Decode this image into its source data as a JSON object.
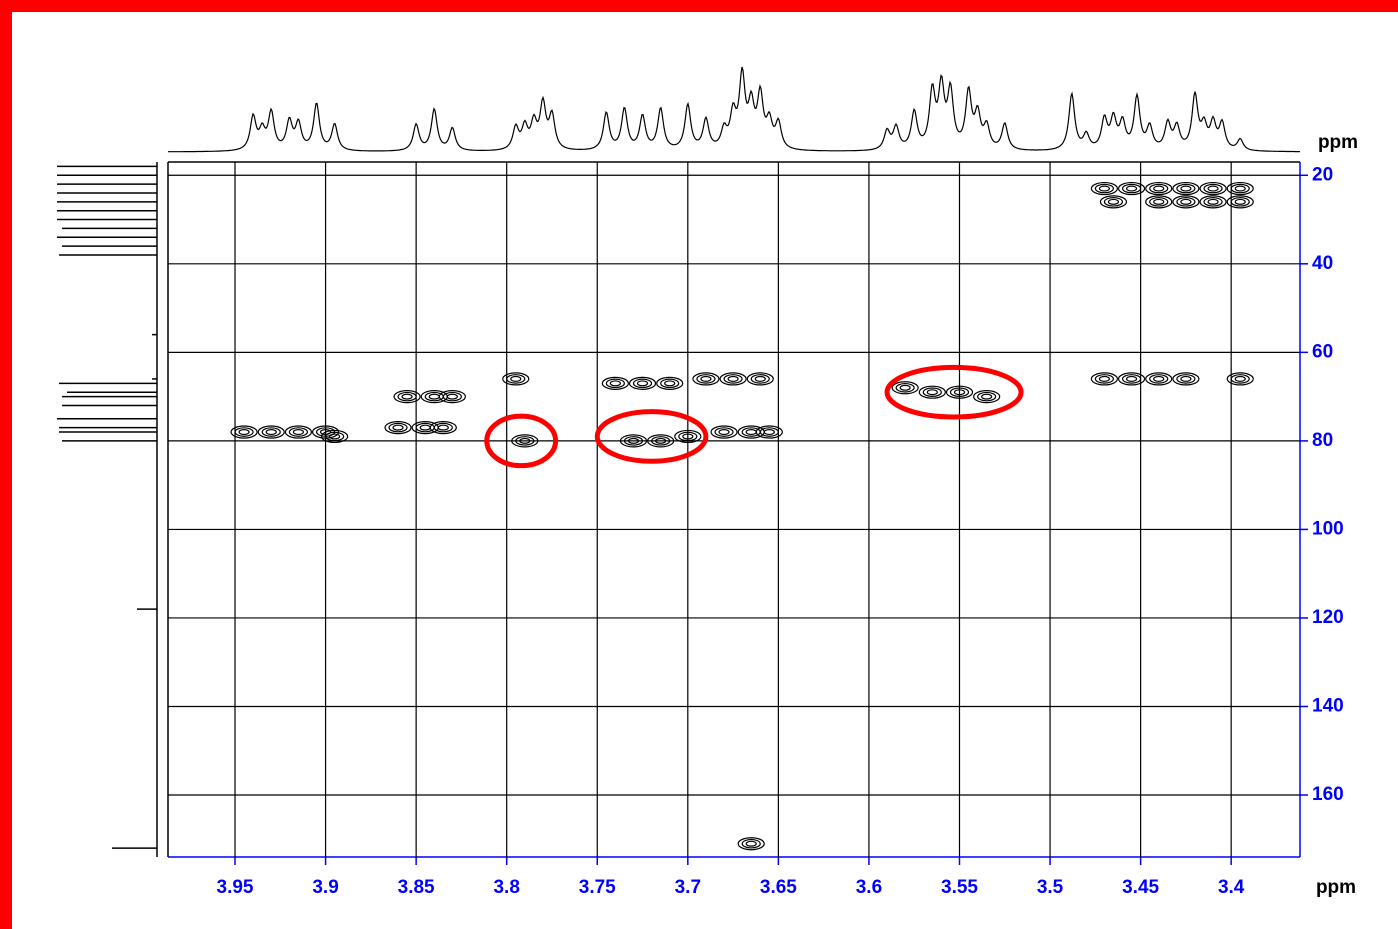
{
  "chart_data": {
    "type": "contour",
    "x_label": "ppm",
    "y_label": "ppm",
    "xlim": [
      3.987,
      3.362
    ],
    "ylim": [
      17,
      174
    ],
    "xticks": [
      3.95,
      3.9,
      3.85,
      3.8,
      3.75,
      3.7,
      3.65,
      3.6,
      3.55,
      3.5,
      3.45,
      3.4
    ],
    "yticks": [
      20,
      40,
      60,
      80,
      100,
      120,
      140,
      160
    ],
    "grid": true,
    "axis_color": "#0000ff",
    "peak_color": "#000000",
    "highlight_color": "#ff0000",
    "peaks": [
      {
        "x": 3.945,
        "y": 78
      },
      {
        "x": 3.93,
        "y": 78
      },
      {
        "x": 3.915,
        "y": 78
      },
      {
        "x": 3.9,
        "y": 78
      },
      {
        "x": 3.895,
        "y": 79
      },
      {
        "x": 3.855,
        "y": 70
      },
      {
        "x": 3.84,
        "y": 70
      },
      {
        "x": 3.83,
        "y": 70
      },
      {
        "x": 3.86,
        "y": 77
      },
      {
        "x": 3.845,
        "y": 77
      },
      {
        "x": 3.835,
        "y": 77
      },
      {
        "x": 3.795,
        "y": 66
      },
      {
        "x": 3.79,
        "y": 80
      },
      {
        "x": 3.74,
        "y": 67
      },
      {
        "x": 3.725,
        "y": 67
      },
      {
        "x": 3.71,
        "y": 67
      },
      {
        "x": 3.69,
        "y": 66
      },
      {
        "x": 3.675,
        "y": 66
      },
      {
        "x": 3.66,
        "y": 66
      },
      {
        "x": 3.73,
        "y": 80
      },
      {
        "x": 3.715,
        "y": 80
      },
      {
        "x": 3.7,
        "y": 79
      },
      {
        "x": 3.68,
        "y": 78
      },
      {
        "x": 3.665,
        "y": 78
      },
      {
        "x": 3.655,
        "y": 78
      },
      {
        "x": 3.58,
        "y": 68
      },
      {
        "x": 3.565,
        "y": 69
      },
      {
        "x": 3.55,
        "y": 69
      },
      {
        "x": 3.535,
        "y": 70
      },
      {
        "x": 3.47,
        "y": 66
      },
      {
        "x": 3.455,
        "y": 66
      },
      {
        "x": 3.44,
        "y": 66
      },
      {
        "x": 3.425,
        "y": 66
      },
      {
        "x": 3.395,
        "y": 66
      },
      {
        "x": 3.47,
        "y": 23
      },
      {
        "x": 3.455,
        "y": 23
      },
      {
        "x": 3.44,
        "y": 23
      },
      {
        "x": 3.425,
        "y": 23
      },
      {
        "x": 3.41,
        "y": 23
      },
      {
        "x": 3.395,
        "y": 23
      },
      {
        "x": 3.465,
        "y": 26
      },
      {
        "x": 3.44,
        "y": 26
      },
      {
        "x": 3.425,
        "y": 26
      },
      {
        "x": 3.41,
        "y": 26
      },
      {
        "x": 3.395,
        "y": 26
      },
      {
        "x": 3.665,
        "y": 171
      }
    ],
    "highlights": [
      {
        "x": 3.792,
        "y": 80,
        "rx": 0.019,
        "ry": 5.6
      },
      {
        "x": 3.72,
        "y": 79,
        "rx": 0.03,
        "ry": 5.6
      },
      {
        "x": 3.553,
        "y": 69,
        "rx": 0.037,
        "ry": 5.6
      }
    ],
    "top_projection": [
      {
        "x": 3.94,
        "h": 0.45
      },
      {
        "x": 3.935,
        "h": 0.25
      },
      {
        "x": 3.93,
        "h": 0.5
      },
      {
        "x": 3.92,
        "h": 0.38
      },
      {
        "x": 3.915,
        "h": 0.35
      },
      {
        "x": 3.905,
        "h": 0.62
      },
      {
        "x": 3.895,
        "h": 0.35
      },
      {
        "x": 3.85,
        "h": 0.35
      },
      {
        "x": 3.84,
        "h": 0.55
      },
      {
        "x": 3.83,
        "h": 0.3
      },
      {
        "x": 3.795,
        "h": 0.3
      },
      {
        "x": 3.79,
        "h": 0.3
      },
      {
        "x": 3.785,
        "h": 0.35
      },
      {
        "x": 3.78,
        "h": 0.6
      },
      {
        "x": 3.775,
        "h": 0.45
      },
      {
        "x": 3.745,
        "h": 0.5
      },
      {
        "x": 3.735,
        "h": 0.55
      },
      {
        "x": 3.725,
        "h": 0.45
      },
      {
        "x": 3.715,
        "h": 0.55
      },
      {
        "x": 3.7,
        "h": 0.6
      },
      {
        "x": 3.69,
        "h": 0.4
      },
      {
        "x": 3.68,
        "h": 0.25
      },
      {
        "x": 3.675,
        "h": 0.45
      },
      {
        "x": 3.67,
        "h": 0.95
      },
      {
        "x": 3.665,
        "h": 0.55
      },
      {
        "x": 3.66,
        "h": 0.7
      },
      {
        "x": 3.655,
        "h": 0.35
      },
      {
        "x": 3.65,
        "h": 0.35
      },
      {
        "x": 3.59,
        "h": 0.25
      },
      {
        "x": 3.585,
        "h": 0.3
      },
      {
        "x": 3.575,
        "h": 0.5
      },
      {
        "x": 3.565,
        "h": 0.75
      },
      {
        "x": 3.56,
        "h": 0.8
      },
      {
        "x": 3.555,
        "h": 0.75
      },
      {
        "x": 3.545,
        "h": 0.75
      },
      {
        "x": 3.54,
        "h": 0.45
      },
      {
        "x": 3.535,
        "h": 0.3
      },
      {
        "x": 3.525,
        "h": 0.35
      },
      {
        "x": 3.488,
        "h": 0.75
      },
      {
        "x": 3.48,
        "h": 0.2
      },
      {
        "x": 3.47,
        "h": 0.4
      },
      {
        "x": 3.465,
        "h": 0.4
      },
      {
        "x": 3.46,
        "h": 0.35
      },
      {
        "x": 3.452,
        "h": 0.7
      },
      {
        "x": 3.445,
        "h": 0.3
      },
      {
        "x": 3.435,
        "h": 0.35
      },
      {
        "x": 3.43,
        "h": 0.3
      },
      {
        "x": 3.42,
        "h": 0.72
      },
      {
        "x": 3.415,
        "h": 0.3
      },
      {
        "x": 3.41,
        "h": 0.35
      },
      {
        "x": 3.405,
        "h": 0.35
      },
      {
        "x": 3.395,
        "h": 0.15
      }
    ],
    "left_projection": [
      {
        "y": 18,
        "h": 1
      },
      {
        "y": 20,
        "h": 1
      },
      {
        "y": 22,
        "h": 1
      },
      {
        "y": 24,
        "h": 1
      },
      {
        "y": 26,
        "h": 1
      },
      {
        "y": 28,
        "h": 1
      },
      {
        "y": 30,
        "h": 1
      },
      {
        "y": 32,
        "h": 0.95
      },
      {
        "y": 34,
        "h": 1
      },
      {
        "y": 36,
        "h": 0.95
      },
      {
        "y": 38,
        "h": 0.98
      },
      {
        "y": 56,
        "h": 0.05
      },
      {
        "y": 66,
        "h": 0.05
      },
      {
        "y": 67,
        "h": 0.98
      },
      {
        "y": 69,
        "h": 0.9
      },
      {
        "y": 70,
        "h": 0.95
      },
      {
        "y": 72,
        "h": 0.95
      },
      {
        "y": 75,
        "h": 1
      },
      {
        "y": 77,
        "h": 0.98
      },
      {
        "y": 78,
        "h": 0.98
      },
      {
        "y": 80,
        "h": 0.95
      },
      {
        "y": 118,
        "h": 0.2
      },
      {
        "y": 172,
        "h": 0.45
      }
    ]
  }
}
